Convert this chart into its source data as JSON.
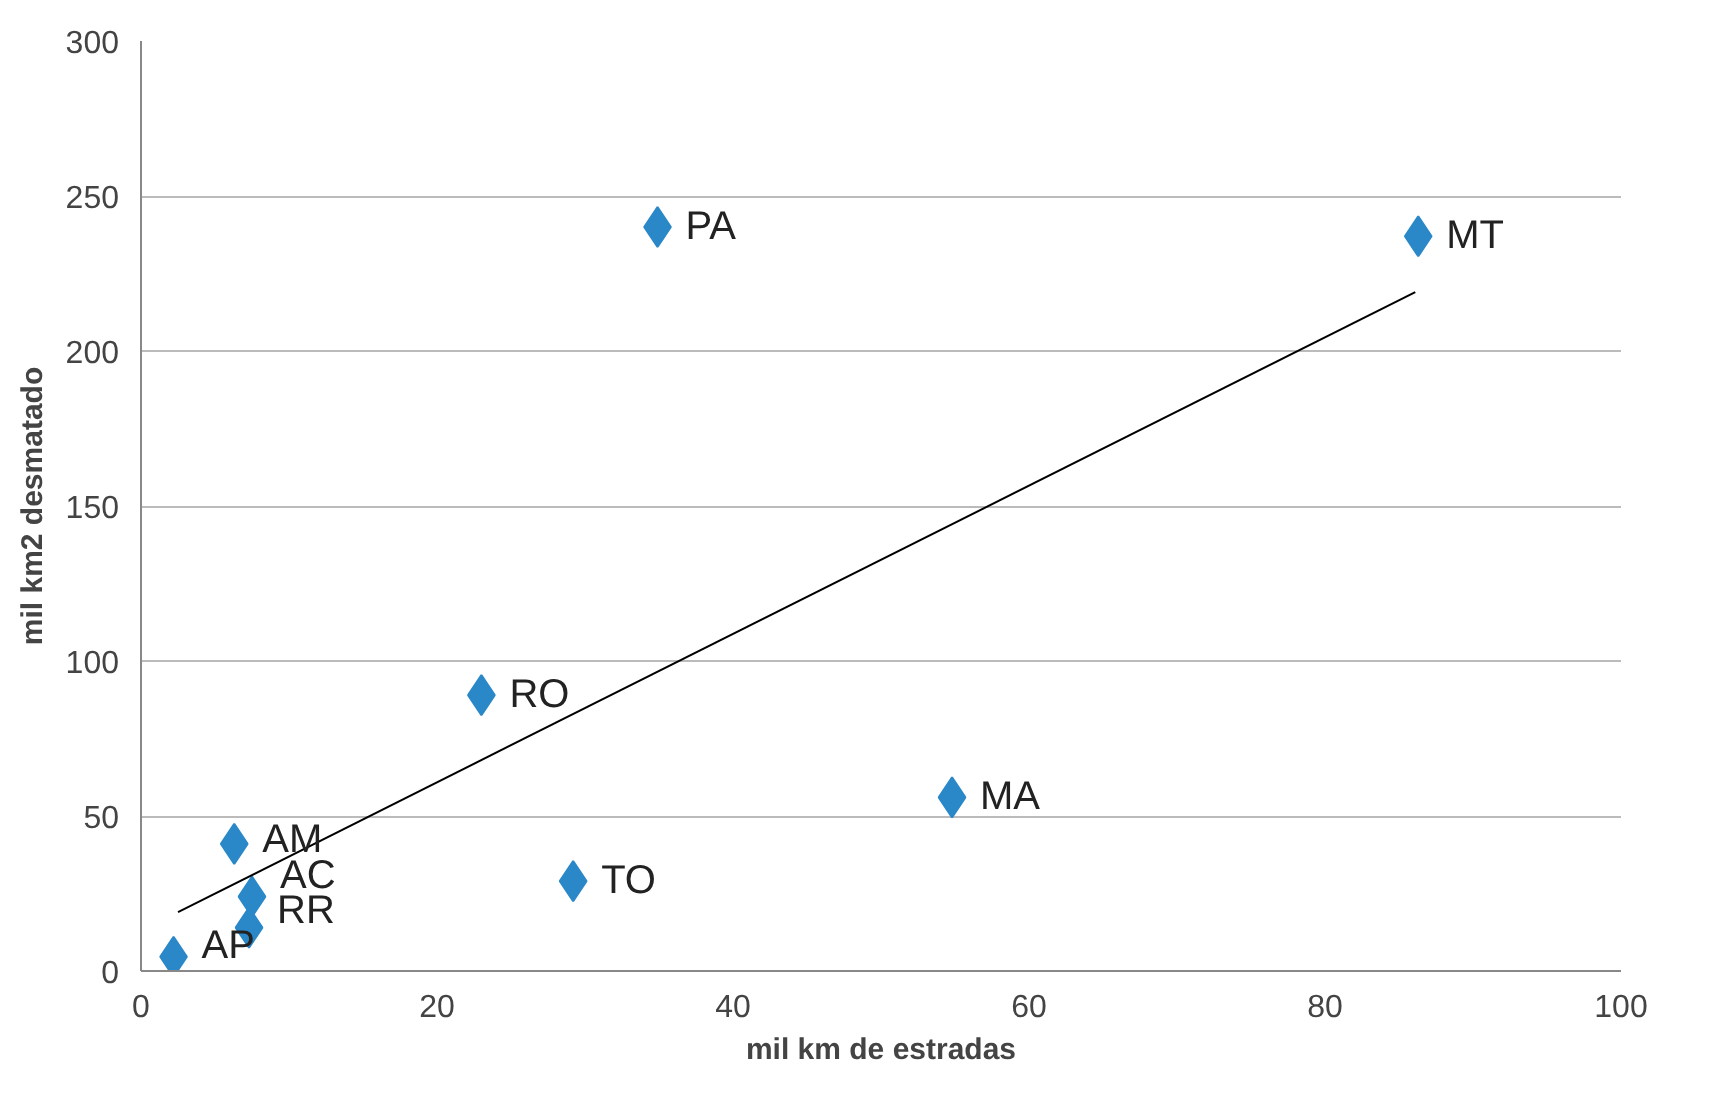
{
  "chart_data": {
    "type": "scatter",
    "xlabel": "mil km de estradas",
    "ylabel": "mil km2 desmatado",
    "xlim": [
      0,
      100
    ],
    "ylim": [
      0,
      300
    ],
    "xticks": [
      0,
      20,
      40,
      60,
      80,
      100
    ],
    "yticks": [
      0,
      50,
      100,
      150,
      200,
      250,
      300
    ],
    "grid": "y",
    "marker": "diamond",
    "series": [
      {
        "color": "#2a88c8",
        "x": [
          2.2,
          6.3,
          7.5,
          7.3,
          23,
          29.2,
          34.9,
          54.8,
          86.3
        ],
        "values": [
          4.6,
          41,
          24,
          14,
          89,
          29,
          240,
          56,
          237
        ],
        "value_labels": [
          "AP",
          "AM",
          "AC",
          "RR",
          "RO",
          "TO",
          "PA",
          "MA",
          "MT"
        ]
      },
      {
        "type": "line",
        "marker": "none",
        "color": "#000000",
        "x": [
          2.5,
          86.1
        ],
        "values": [
          19,
          219
        ]
      }
    ]
  }
}
